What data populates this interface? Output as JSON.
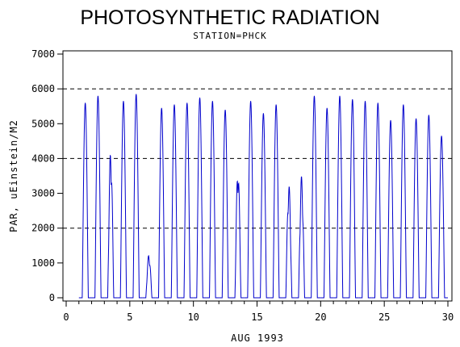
{
  "chart_data": {
    "type": "line",
    "title": "PHOTOSYNTHETIC RADIATION",
    "subtitle": "STATION=PHCK",
    "xlabel": "AUG 1993",
    "ylabel": "PAR, uEinstein/M2",
    "xlim": [
      0,
      30
    ],
    "ylim": [
      0,
      7000
    ],
    "x_ticks": [
      0,
      5,
      10,
      15,
      20,
      25,
      30
    ],
    "y_ticks": [
      0,
      1000,
      2000,
      3000,
      4000,
      5000,
      6000,
      7000
    ],
    "reference_lines_y": [
      2000,
      4000,
      6000
    ],
    "grid": "dashed horizontal reference lines",
    "line_color": "#0000cc",
    "series": [
      {
        "name": "",
        "daily_peaks": [
          {
            "x": 1.5,
            "y": 5600
          },
          {
            "x": 2.5,
            "y": 5800
          },
          {
            "x": 3.5,
            "y": 4300
          },
          {
            "x": 4.5,
            "y": 5650
          },
          {
            "x": 5.5,
            "y": 5850
          },
          {
            "x": 6.5,
            "y": 1250
          },
          {
            "x": 7.5,
            "y": 5450
          },
          {
            "x": 8.5,
            "y": 5550
          },
          {
            "x": 9.5,
            "y": 5600
          },
          {
            "x": 10.5,
            "y": 5750
          },
          {
            "x": 11.5,
            "y": 5650
          },
          {
            "x": 12.5,
            "y": 5400
          },
          {
            "x": 13.5,
            "y": 3800
          },
          {
            "x": 14.5,
            "y": 5650
          },
          {
            "x": 15.5,
            "y": 5300
          },
          {
            "x": 16.5,
            "y": 5550
          },
          {
            "x": 17.5,
            "y": 3300
          },
          {
            "x": 18.5,
            "y": 3500
          },
          {
            "x": 19.5,
            "y": 5800
          },
          {
            "x": 20.5,
            "y": 5450
          },
          {
            "x": 21.5,
            "y": 5800
          },
          {
            "x": 22.5,
            "y": 5700
          },
          {
            "x": 23.5,
            "y": 5650
          },
          {
            "x": 24.5,
            "y": 5600
          },
          {
            "x": 25.5,
            "y": 5100
          },
          {
            "x": 26.5,
            "y": 5550
          },
          {
            "x": 27.5,
            "y": 5150
          },
          {
            "x": 28.5,
            "y": 5250
          },
          {
            "x": 29.5,
            "y": 4650
          }
        ]
      }
    ]
  }
}
